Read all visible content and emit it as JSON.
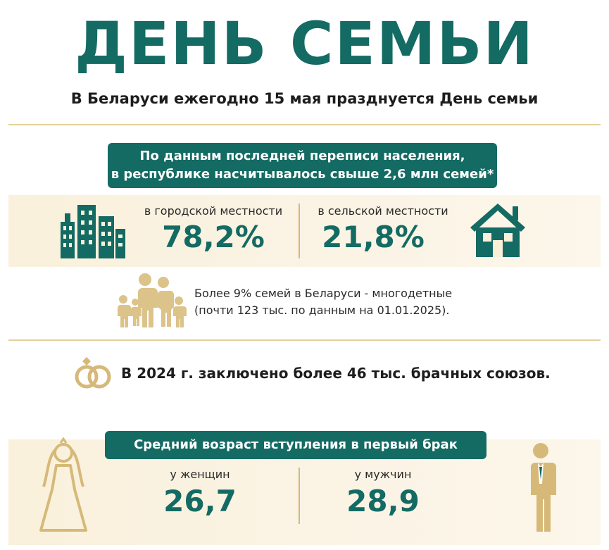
{
  "header": {
    "title": "ДЕНЬ СЕМЬИ",
    "subtitle": "В Беларуси ежегодно 15 мая празднуется День семьи"
  },
  "census": {
    "line1": "По данным последней переписи населения,",
    "line2": "в республике насчитывалось свыше 2,6 млн семей*",
    "urban_label": "в городской местности",
    "urban_value": "78,2%",
    "rural_label": "в сельской местности",
    "rural_value": "21,8%"
  },
  "large_families": {
    "line1": "Более 9% семей в Беларуси - многодетные",
    "line2": "(почти 123 тыс. по данным на 01.01.2025)."
  },
  "marriages": {
    "text": "В 2024 г. заключено более 46 тыс. брачных союзов."
  },
  "first_marriage": {
    "heading": "Средний возраст вступления в первый брак",
    "women_label": "у женщин",
    "women_value": "26,7",
    "men_label": "у мужчин",
    "men_value": "28,9"
  },
  "colors": {
    "teal": "#136b63",
    "gold": "#d6b979",
    "beige": "#faf0da"
  },
  "icons": [
    "city-buildings-icon",
    "house-icon",
    "family-icon",
    "wedding-rings-icon",
    "bride-icon",
    "groom-icon"
  ]
}
